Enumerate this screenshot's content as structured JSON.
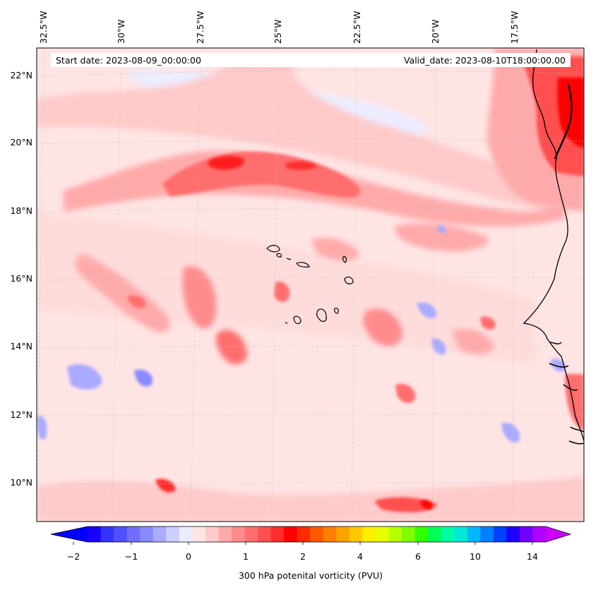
{
  "map": {
    "info": {
      "start_date": "Start date: 2023-08-09_00:00:00",
      "valid_date": "Valid_date: 2023-08-10T18:00:00.00"
    },
    "lon_labels": [
      "32.5°W",
      "30°W",
      "27.5°W",
      "25°W",
      "22.5°W",
      "20°W",
      "17.5°W"
    ],
    "lat_labels": [
      "22°N",
      "20°N",
      "18°N",
      "16°N",
      "14°N",
      "12°N",
      "10°N"
    ],
    "colorbar": {
      "title": "300 hPa potenital vorticity (PVU)",
      "tick_labels": [
        "−2",
        "−1",
        "0",
        "1",
        "2",
        "4",
        "6",
        "10",
        "14"
      ],
      "colors": [
        "#1b00ff",
        "#3335ff",
        "#5050ff",
        "#6f6fff",
        "#8a8aff",
        "#aaaaff",
        "#cfcfff",
        "#ececff",
        "#ffe4e4",
        "#ffcaca",
        "#ffaaaa",
        "#ff8c8c",
        "#ff6e6e",
        "#ff4f4f",
        "#ff2d2d",
        "#ff0000",
        "#ff2b00",
        "#ff5a00",
        "#ff8000",
        "#ffa200",
        "#ffc800",
        "#ffee00",
        "#e8ff00",
        "#b8ff00",
        "#7dff00",
        "#33ff00",
        "#00ff55",
        "#00ffa2",
        "#00e8d8",
        "#00b8ff",
        "#0080ff",
        "#0040ff",
        "#2000ff",
        "#7000ff",
        "#b000ff"
      ],
      "extend_min_color": "#0000ff",
      "extend_max_color": "#cc00ff"
    },
    "land_color": "#ff0000",
    "background_level_color": "#ffe4e4"
  }
}
